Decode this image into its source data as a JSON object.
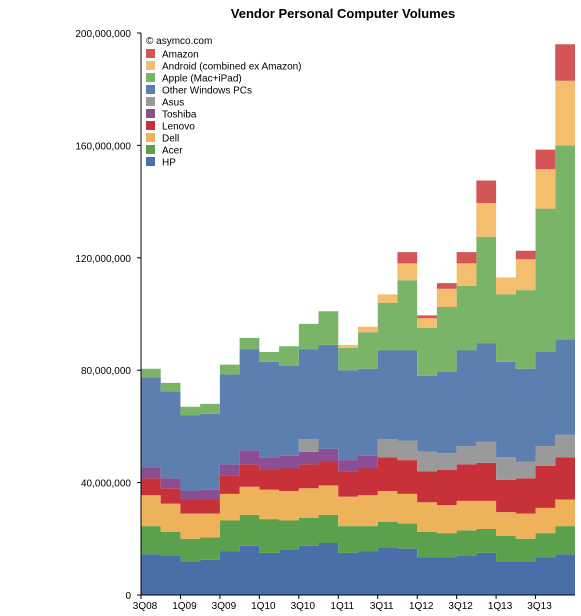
{
  "chart_data": {
    "type": "area",
    "title": "Vendor Personal Computer Volumes",
    "credit": "© asymco.com",
    "xlabel": "",
    "ylabel": "",
    "ylim": [
      0,
      200000000
    ],
    "y_ticks": [
      0,
      40000000,
      80000000,
      120000000,
      160000000,
      200000000
    ],
    "y_tick_labels": [
      "0",
      "40,000,000",
      "80,000,000",
      "120,000,000",
      "160,000,000",
      "200,000,000"
    ],
    "x_tick_labels": [
      "3Q08",
      "1Q09",
      "3Q09",
      "1Q10",
      "3Q10",
      "1Q11",
      "3Q11",
      "1Q12",
      "3Q12",
      "1Q13",
      "3Q13"
    ],
    "x_tick_every": 2,
    "grid": false,
    "legend_position": "top-left",
    "categories": [
      "3Q08",
      "4Q08",
      "1Q09",
      "2Q09",
      "3Q09",
      "4Q09",
      "1Q10",
      "2Q10",
      "3Q10",
      "4Q10",
      "1Q11",
      "2Q11",
      "3Q11",
      "4Q11",
      "1Q12",
      "2Q12",
      "3Q12",
      "4Q12",
      "1Q13",
      "2Q13",
      "3Q13",
      "4Q13"
    ],
    "series": [
      {
        "name": "HP",
        "color": "#4a6fa8",
        "values": [
          14500000,
          14000000,
          12000000,
          12500000,
          15500000,
          17500000,
          15000000,
          16000000,
          17500000,
          18500000,
          15000000,
          15500000,
          17000000,
          16500000,
          13500000,
          13500000,
          14000000,
          15000000,
          12000000,
          12000000,
          13500000,
          14500000
        ]
      },
      {
        "name": "Acer",
        "color": "#5aa04d",
        "values": [
          10000000,
          8500000,
          8000000,
          8000000,
          11000000,
          11000000,
          12000000,
          10500000,
          10000000,
          10000000,
          9500000,
          9000000,
          9000000,
          9000000,
          9000000,
          8500000,
          9000000,
          8500000,
          9000000,
          8000000,
          8500000,
          10000000
        ]
      },
      {
        "name": "Dell",
        "color": "#eeb35a",
        "values": [
          11000000,
          10000000,
          9000000,
          8500000,
          9500000,
          10000000,
          10500000,
          10500000,
          10500000,
          10500000,
          10500000,
          11000000,
          11000000,
          10500000,
          10500000,
          10000000,
          10500000,
          10000000,
          8500000,
          9000000,
          9000000,
          9500000
        ]
      },
      {
        "name": "Lenovo",
        "color": "#c8313a",
        "values": [
          6000000,
          5500000,
          5000000,
          5000000,
          6500000,
          8000000,
          7000000,
          8000000,
          8500000,
          8500000,
          9000000,
          9500000,
          12000000,
          12000000,
          11000000,
          12500000,
          13000000,
          13500000,
          11500000,
          12500000,
          15000000,
          15000000
        ]
      },
      {
        "name": "Toshiba",
        "color": "#8b4e92",
        "values": [
          4000000,
          3500000,
          3000000,
          3500000,
          4000000,
          5000000,
          4500000,
          4500000,
          4500000,
          4500000,
          4000000,
          4500000,
          0,
          0,
          0,
          0,
          0,
          0,
          0,
          0,
          0,
          0
        ]
      },
      {
        "name": "Asus",
        "color": "#9a9a9a",
        "values": [
          0,
          0,
          0,
          0,
          0,
          0,
          0,
          0,
          4500000,
          0,
          0,
          0,
          6500000,
          7000000,
          7000000,
          6000000,
          6500000,
          7500000,
          8000000,
          6000000,
          7000000,
          8000000
        ]
      },
      {
        "name": "Other Windows PCs",
        "color": "#5c7fb0",
        "values": [
          32000000,
          31000000,
          27000000,
          27000000,
          32000000,
          36000000,
          34000000,
          32000000,
          32000000,
          37000000,
          32000000,
          31000000,
          31500000,
          32000000,
          27000000,
          29000000,
          34000000,
          35000000,
          34000000,
          33000000,
          33500000,
          34000000
        ]
      },
      {
        "name": "Apple (Mac+iPad)",
        "color": "#7ab468",
        "values": [
          3000000,
          3000000,
          3000000,
          3500000,
          3500000,
          4000000,
          3500000,
          7000000,
          9000000,
          12000000,
          8000000,
          13000000,
          17000000,
          25000000,
          17000000,
          23000000,
          23000000,
          38000000,
          24000000,
          28000000,
          51000000,
          69000000
        ]
      },
      {
        "name": "Android (combined ex Amazon)",
        "color": "#f3be6e",
        "values": [
          0,
          0,
          0,
          0,
          0,
          0,
          0,
          0,
          0,
          0,
          1000000,
          2000000,
          3000000,
          6000000,
          3500000,
          6500000,
          8000000,
          12000000,
          6000000,
          11000000,
          14000000,
          23000000
        ]
      },
      {
        "name": "Amazon",
        "color": "#d35555",
        "values": [
          0,
          0,
          0,
          0,
          0,
          0,
          0,
          0,
          0,
          0,
          0,
          0,
          0,
          4000000,
          1000000,
          2000000,
          4000000,
          8000000,
          0,
          3000000,
          7000000,
          13000000
        ]
      }
    ]
  }
}
